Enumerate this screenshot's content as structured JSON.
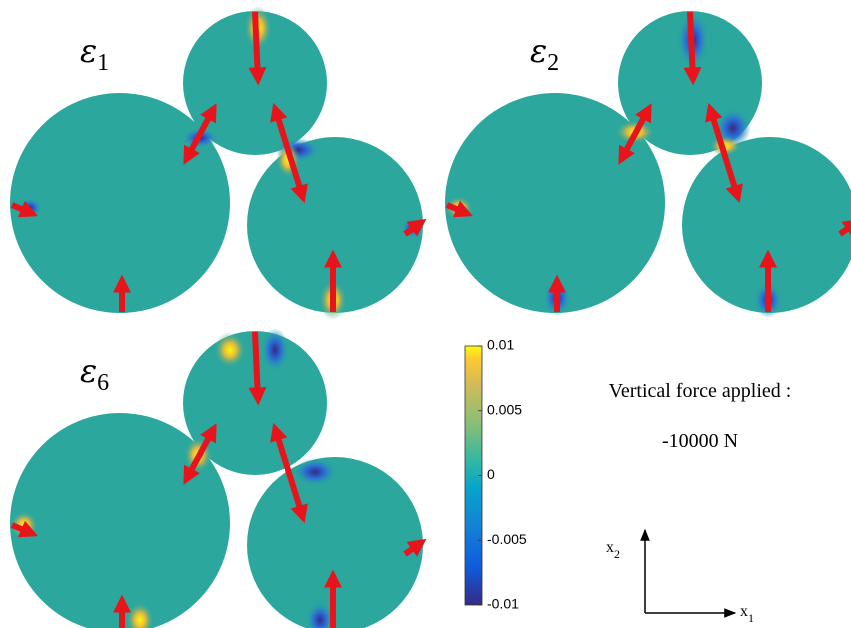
{
  "panels": [
    {
      "symbol": "ε",
      "subscript": "1"
    },
    {
      "symbol": "ε",
      "subscript": "2"
    },
    {
      "symbol": "ε",
      "subscript": "6"
    }
  ],
  "colorbar": {
    "limits": [
      -0.01,
      0.01
    ],
    "ticks": [
      0.01,
      0.005,
      0,
      -0.005,
      -0.01
    ]
  },
  "force": {
    "label": "Vertical force applied :",
    "value": "-10000 N"
  },
  "axes": {
    "vertical": {
      "symbol": "x",
      "subscript": "2"
    },
    "horizontal": {
      "symbol": "x",
      "subscript": "1"
    }
  }
}
